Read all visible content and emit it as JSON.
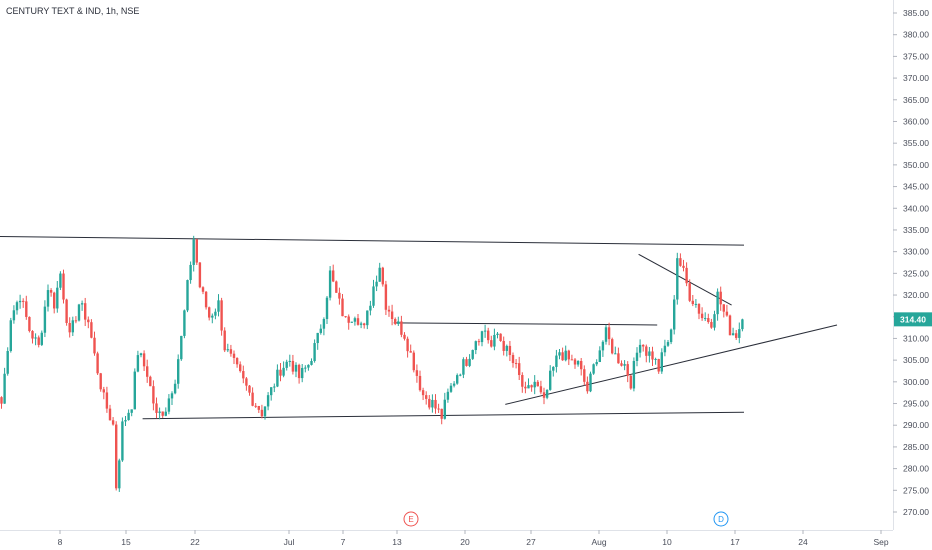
{
  "chart_data": {
    "type": "candlestick",
    "title": "CENTURY TEXT & IND, 1h, NSE",
    "ylim": [
      266.5,
      388.5
    ],
    "yticks": [
      270.0,
      275.0,
      280.0,
      285.0,
      290.0,
      295.0,
      300.0,
      305.0,
      310.0,
      315.0,
      320.0,
      325.0,
      330.0,
      335.0,
      340.0,
      345.0,
      350.0,
      355.0,
      360.0,
      365.0,
      370.0,
      375.0,
      380.0,
      385.0
    ],
    "xticks": [
      "8",
      "15",
      "22",
      "Jul",
      "7",
      "13",
      "20",
      "27",
      "Aug",
      "10",
      "17",
      "24",
      "Sep"
    ],
    "last_price": "314.40",
    "colors": {
      "up": "#26a69a",
      "down": "#ef5350",
      "trendline": "#2a2e39",
      "axis": "#dfe2e8",
      "last_price_bg": "#26a69a",
      "earnings": "#ef5350",
      "dividend": "#2196f3"
    },
    "events": [
      {
        "label": "E",
        "near_tick": "13",
        "color": "#ef5350"
      },
      {
        "label": "D",
        "near_tick": "17",
        "color": "#2196f3"
      }
    ],
    "anchors": [
      [
        0,
        295
      ],
      [
        3,
        315
      ],
      [
        6,
        320
      ],
      [
        9,
        312
      ],
      [
        12,
        308
      ],
      [
        15,
        322
      ],
      [
        17,
        318
      ],
      [
        19,
        325
      ],
      [
        22,
        310
      ],
      [
        25,
        318
      ],
      [
        28,
        314
      ],
      [
        30,
        306
      ],
      [
        33,
        296
      ],
      [
        36,
        290
      ],
      [
        37,
        276
      ],
      [
        39,
        290
      ],
      [
        42,
        295
      ],
      [
        44,
        307
      ],
      [
        47,
        302
      ],
      [
        50,
        292
      ],
      [
        53,
        294
      ],
      [
        56,
        301
      ],
      [
        58,
        310
      ],
      [
        60,
        322
      ],
      [
        62,
        333
      ],
      [
        64,
        322
      ],
      [
        67,
        315
      ],
      [
        70,
        318
      ],
      [
        72,
        308
      ],
      [
        75,
        304
      ],
      [
        78,
        300
      ],
      [
        81,
        296
      ],
      [
        84,
        293
      ],
      [
        87,
        298
      ],
      [
        90,
        303
      ],
      [
        93,
        305
      ],
      [
        96,
        301
      ],
      [
        99,
        304
      ],
      [
        102,
        310
      ],
      [
        104,
        316
      ],
      [
        106,
        325
      ],
      [
        108,
        320
      ],
      [
        111,
        314
      ],
      [
        114,
        316
      ],
      [
        117,
        312
      ],
      [
        120,
        322
      ],
      [
        122,
        327
      ],
      [
        124,
        318
      ],
      [
        127,
        314
      ],
      [
        130,
        311
      ],
      [
        133,
        304
      ],
      [
        136,
        297
      ],
      [
        139,
        295
      ],
      [
        142,
        292
      ],
      [
        144,
        297
      ],
      [
        147,
        302
      ],
      [
        150,
        305
      ],
      [
        153,
        310
      ],
      [
        156,
        312
      ],
      [
        158,
        308
      ],
      [
        160,
        311
      ],
      [
        163,
        307
      ],
      [
        166,
        303
      ],
      [
        169,
        297
      ],
      [
        172,
        300
      ],
      [
        175,
        295
      ],
      [
        177,
        301
      ],
      [
        180,
        307
      ],
      [
        183,
        305
      ],
      [
        186,
        304
      ],
      [
        189,
        298
      ],
      [
        192,
        306
      ],
      [
        195,
        311
      ],
      [
        198,
        306
      ],
      [
        201,
        304
      ],
      [
        203,
        300
      ],
      [
        206,
        310
      ],
      [
        208,
        307
      ],
      [
        210,
        306
      ],
      [
        212,
        303
      ],
      [
        214,
        308
      ],
      [
        216,
        311
      ],
      [
        218,
        329
      ],
      [
        220,
        325
      ],
      [
        222,
        320
      ],
      [
        224,
        318
      ],
      [
        226,
        315
      ],
      [
        229,
        314
      ],
      [
        231,
        320
      ],
      [
        233,
        316
      ],
      [
        235,
        312
      ],
      [
        237,
        311
      ],
      [
        239,
        314
      ]
    ],
    "trendlines": [
      {
        "from": [
          0,
          333.5
        ],
        "to": [
          240,
          331.5
        ]
      },
      {
        "from": [
          46,
          291.5
        ],
        "to": [
          240,
          293.0
        ]
      },
      {
        "from": [
          127,
          313.6
        ],
        "to": [
          212,
          313.1
        ]
      },
      {
        "from": [
          163,
          294.8
        ],
        "to": [
          270,
          313.1
        ]
      },
      {
        "from": [
          206,
          329.4
        ],
        "to": [
          236,
          317.7
        ]
      }
    ]
  }
}
